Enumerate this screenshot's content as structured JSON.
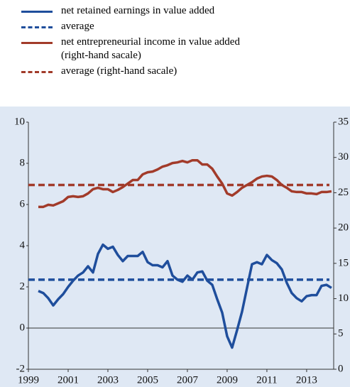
{
  "chart_data": {
    "type": "line",
    "x": [
      1999.5,
      1999.75,
      2000,
      2000.25,
      2000.5,
      2000.75,
      2001,
      2001.25,
      2001.5,
      2001.75,
      2002,
      2002.25,
      2002.5,
      2002.75,
      2003,
      2003.25,
      2003.5,
      2003.75,
      2004,
      2004.25,
      2004.5,
      2004.75,
      2005,
      2005.25,
      2005.5,
      2005.75,
      2006,
      2006.25,
      2006.5,
      2006.75,
      2007,
      2007.25,
      2007.5,
      2007.75,
      2008,
      2008.25,
      2008.5,
      2008.75,
      2009,
      2009.25,
      2009.5,
      2009.75,
      2010,
      2010.25,
      2010.5,
      2010.75,
      2011,
      2011.25,
      2011.5,
      2011.75,
      2012,
      2012.25,
      2012.5,
      2012.75,
      2013,
      2013.25,
      2013.5,
      2013.75,
      2014,
      2014.25
    ],
    "series": [
      {
        "name": "net retained earnings in value added",
        "color": "#1f4e9c",
        "values": [
          1.8,
          1.7,
          1.45,
          1.1,
          1.4,
          1.65,
          2.0,
          2.3,
          2.55,
          2.7,
          3.0,
          2.7,
          3.6,
          4.05,
          3.85,
          3.95,
          3.55,
          3.25,
          3.5,
          3.5,
          3.5,
          3.7,
          3.2,
          3.05,
          3.05,
          2.95,
          3.25,
          2.55,
          2.35,
          2.25,
          2.55,
          2.35,
          2.7,
          2.75,
          2.3,
          2.1,
          1.4,
          0.75,
          -0.4,
          -0.95,
          -0.1,
          0.8,
          1.95,
          3.1,
          3.2,
          3.1,
          3.55,
          3.3,
          3.15,
          2.85,
          2.2,
          1.7,
          1.45,
          1.3,
          1.55,
          1.6,
          1.6,
          2.05,
          2.1,
          1.95
        ]
      },
      {
        "name": "average",
        "color": "#1f4e9c",
        "dashed": true,
        "value": 2.35
      },
      {
        "name": "net entrepreneurial income in value added (right-hand sacale)",
        "color": "#a23b2a",
        "axis": "y2",
        "values": [
          23.0,
          23.0,
          23.3,
          23.2,
          23.5,
          23.8,
          24.4,
          24.5,
          24.4,
          24.5,
          24.9,
          25.5,
          25.7,
          25.5,
          25.5,
          25.1,
          25.4,
          25.8,
          26.3,
          26.8,
          26.8,
          27.6,
          27.9,
          28.0,
          28.3,
          28.7,
          28.9,
          29.2,
          29.3,
          29.5,
          29.3,
          29.6,
          29.6,
          29.0,
          29.0,
          28.4,
          27.3,
          26.3,
          24.9,
          24.6,
          25.1,
          25.7,
          26.1,
          26.5,
          27.0,
          27.3,
          27.4,
          27.3,
          26.8,
          26.1,
          25.7,
          25.2,
          25.1,
          25.1,
          24.9,
          24.9,
          24.8,
          25.1,
          25.1,
          25.2
        ]
      },
      {
        "name": "average (right-hand sacale)",
        "color": "#a23b2a",
        "dashed": true,
        "axis": "y2",
        "value": 26.1
      }
    ],
    "xlim": [
      1999,
      2014.36
    ],
    "xticks": [
      1999,
      2001,
      2003,
      2005,
      2007,
      2009,
      2011,
      2013
    ],
    "ylim": [
      -2,
      10
    ],
    "yticks": [
      -2,
      0,
      2,
      4,
      6,
      8,
      10
    ],
    "y2lim": [
      0,
      35
    ],
    "y2ticks": [
      0,
      5,
      10,
      15,
      20,
      25,
      30,
      35
    ],
    "background": "#dfe8f4"
  }
}
